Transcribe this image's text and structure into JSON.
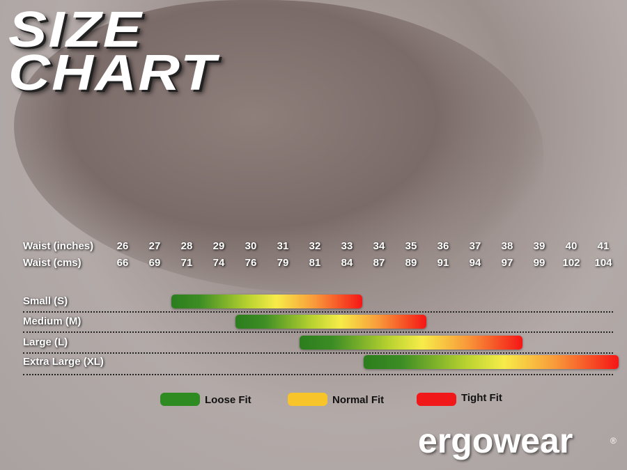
{
  "title": {
    "line1": "SIZE",
    "line2": "CHART"
  },
  "chart_data": {
    "type": "range-bar",
    "row_labels": {
      "inches": "Waist (inches)",
      "cms": "Waist (cms)"
    },
    "waist_inches": [
      26,
      27,
      28,
      29,
      30,
      31,
      32,
      33,
      34,
      35,
      36,
      37,
      38,
      39,
      40,
      41
    ],
    "waist_cms": [
      66,
      69,
      71,
      74,
      76,
      79,
      81,
      84,
      87,
      89,
      91,
      94,
      97,
      99,
      102,
      104
    ],
    "sizes": [
      {
        "label": "Small (S)",
        "from": 28,
        "to": 33
      },
      {
        "label": "Medium (M)",
        "from": 30,
        "to": 35
      },
      {
        "label": "Large (L)",
        "from": 32,
        "to": 38
      },
      {
        "label": "Extra Large (XL)",
        "from": 34,
        "to": 41
      }
    ],
    "legend": [
      {
        "label": "Loose Fit",
        "color": "#2e8b22"
      },
      {
        "label": "Normal Fit",
        "color": "#f7c52a"
      },
      {
        "label": "Tight Fit",
        "color": "#f01818"
      }
    ]
  },
  "brand": {
    "logo": "ergowear",
    "registered": "®"
  }
}
